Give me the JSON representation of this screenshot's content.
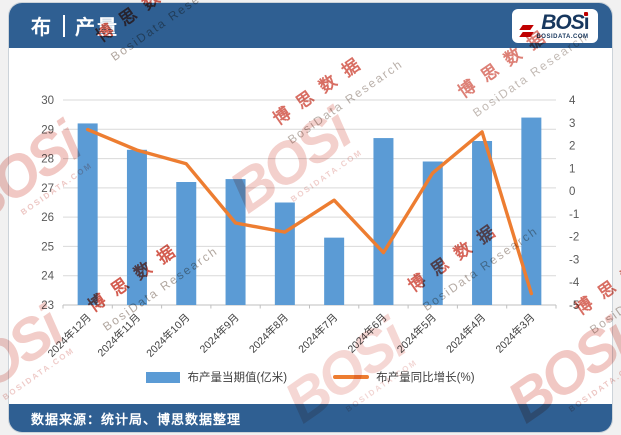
{
  "header": {
    "title_part1": "布",
    "title_part2": "产量"
  },
  "logo": {
    "main": "BOS",
    "i": "i",
    "site": "BOSIDATA.COM"
  },
  "chart_data": {
    "type": "bar",
    "title": "布 | 产量",
    "categories": [
      "2024年12月",
      "2024年11月",
      "2024年10月",
      "2024年9月",
      "2024年8月",
      "2024年7月",
      "2024年6月",
      "2024年5月",
      "2024年4月",
      "2024年3月"
    ],
    "series": [
      {
        "name": "布产量当期值(亿米)",
        "type": "bar",
        "axis": "left",
        "color": "#5B9BD5",
        "values": [
          29.2,
          28.3,
          27.2,
          27.3,
          26.5,
          25.3,
          28.7,
          27.9,
          28.6,
          29.4
        ]
      },
      {
        "name": "布产量同比增长(%)",
        "type": "line",
        "axis": "right",
        "color": "#ED7D31",
        "values": [
          2.7,
          1.8,
          1.2,
          -1.4,
          -1.8,
          -0.4,
          -2.7,
          0.8,
          2.6,
          -4.5
        ]
      }
    ],
    "left_axis": {
      "min": 23,
      "max": 30,
      "ticks": [
        30,
        29,
        28,
        27,
        26,
        25,
        24,
        23
      ]
    },
    "right_axis": {
      "min": -5,
      "max": 4,
      "ticks": [
        4,
        3,
        2,
        1,
        0,
        -1,
        -2,
        -3,
        -4,
        -5
      ]
    },
    "grid": "horizontal-left-axis",
    "legend_position": "bottom",
    "grid_color": "#d9d9d9",
    "axis_line_color": "#bfbfbf",
    "tick_label_color": "#595959"
  },
  "legend": {
    "bar_label": "布产量当期值(亿米)",
    "line_label": "布产量同比增长(%)"
  },
  "footer": {
    "source": "数据来源：统计局、博思数据整理"
  },
  "watermark": {
    "brand": "BOSi",
    "site": "BOSIDATA.COM",
    "cn": "博思数据",
    "en": "BosiData Research"
  },
  "colors": {
    "header_bg": "#2F5F92",
    "footer_bg": "#2F5F92",
    "bar": "#5B9BD5",
    "line": "#ED7D31"
  }
}
